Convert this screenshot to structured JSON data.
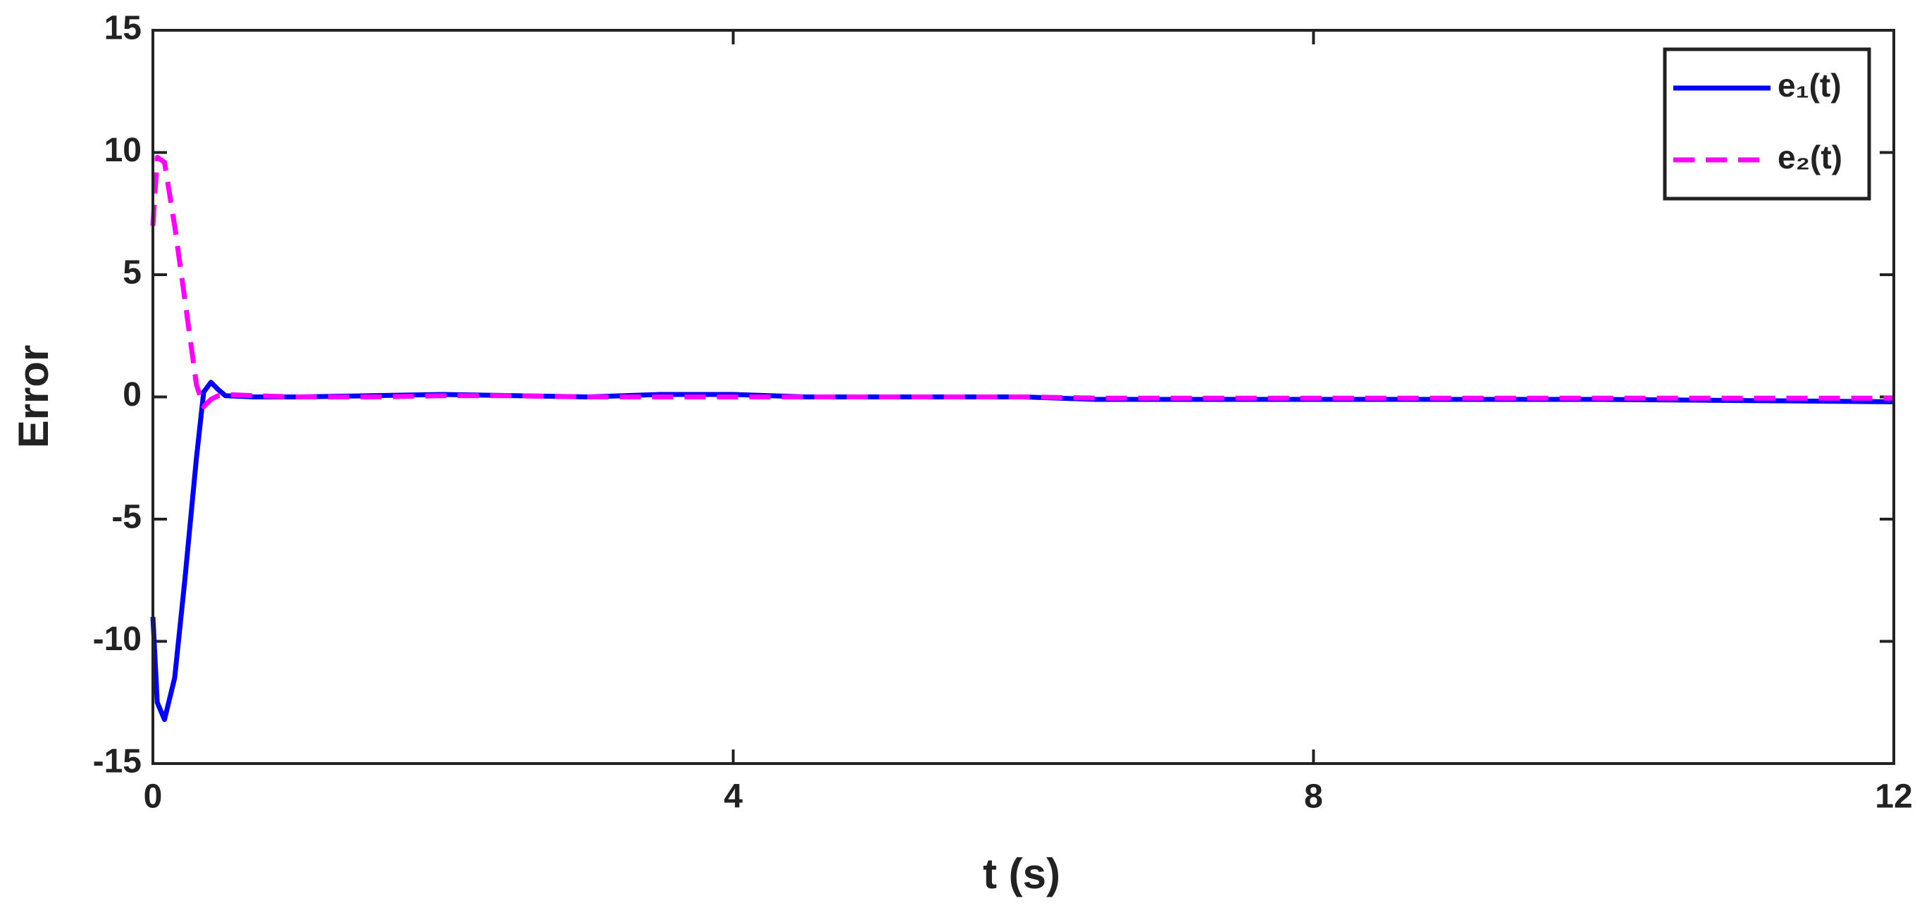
{
  "chart_data": {
    "type": "line",
    "xlabel": "t (s)",
    "ylabel": "Error",
    "x": [
      0,
      0.03,
      0.08,
      0.15,
      0.22,
      0.3,
      0.35,
      0.4,
      0.45,
      0.5,
      0.7,
      1,
      1.5,
      2,
      2.5,
      3,
      3.5,
      4,
      4.5,
      5,
      5.5,
      6,
      6.5,
      7,
      8,
      9,
      10,
      11,
      12
    ],
    "series": [
      {
        "name": "e₁(t)",
        "color": "#0000ff",
        "dash": false,
        "values": [
          -9,
          -12.5,
          -13.2,
          -11.5,
          -7.5,
          -2.5,
          0.2,
          0.6,
          0.3,
          0.05,
          0,
          0,
          0.05,
          0.1,
          0.05,
          0,
          0.1,
          0.1,
          0,
          0,
          0,
          0,
          -0.1,
          -0.1,
          -0.1,
          -0.1,
          -0.1,
          -0.15,
          -0.2
        ]
      },
      {
        "name": "e₂(t)",
        "color": "#ff00ff",
        "dash": true,
        "values": [
          7,
          9.8,
          9.6,
          7,
          4,
          0.5,
          -0.4,
          -0.1,
          0.05,
          0.1,
          0.05,
          0,
          0,
          0.05,
          0.05,
          0,
          0,
          0,
          0,
          0,
          0,
          0,
          -0.05,
          -0.05,
          -0.05,
          -0.05,
          -0.05,
          -0.05,
          -0.05
        ]
      }
    ],
    "xlim": [
      0,
      12
    ],
    "xticks": [
      0,
      4,
      8,
      12
    ],
    "ylim": [
      -15,
      15
    ],
    "yticks": [
      -15,
      -10,
      -5,
      0,
      5,
      10,
      15
    ],
    "legend": "top-right"
  }
}
